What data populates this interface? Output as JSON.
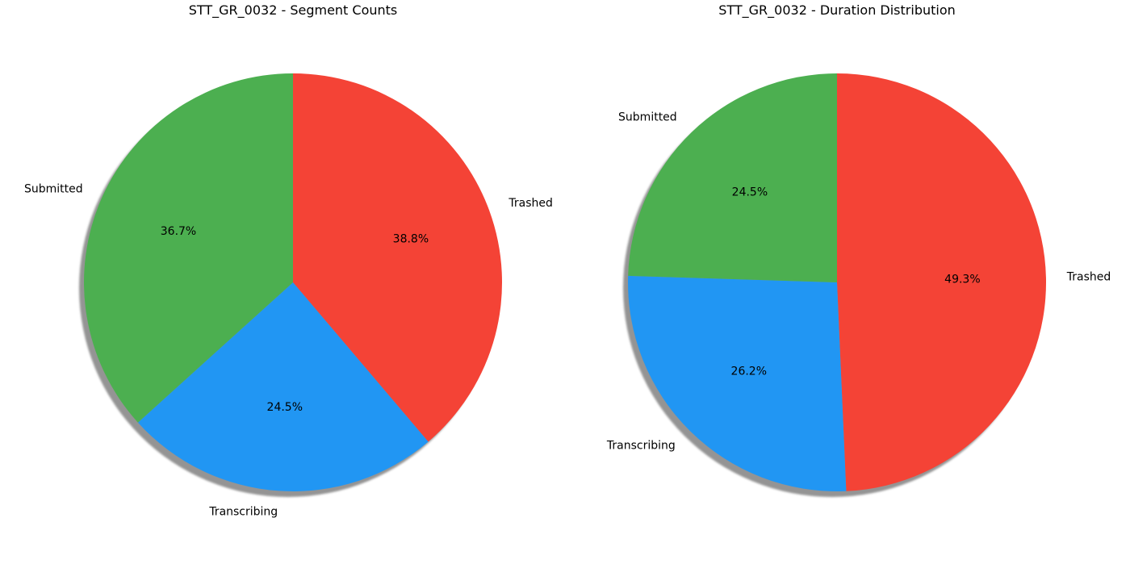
{
  "chart_data": [
    {
      "type": "pie",
      "title": "STT_GR_0032 - Segment Counts",
      "slices": [
        {
          "label": "Trashed",
          "value": 38.8,
          "pct_label": "38.8%"
        },
        {
          "label": "Transcribing",
          "value": 24.5,
          "pct_label": "24.5%"
        },
        {
          "label": "Submitted",
          "value": 36.7,
          "pct_label": "36.7%"
        }
      ],
      "colors": [
        "#F44336",
        "#2196F3",
        "#4CAF50"
      ],
      "start_angle_deg": 90,
      "direction": "clockwise",
      "shadow": true
    },
    {
      "type": "pie",
      "title": "STT_GR_0032 - Duration Distribution",
      "slices": [
        {
          "label": "Trashed",
          "value": 49.3,
          "pct_label": "49.3%"
        },
        {
          "label": "Transcribing",
          "value": 26.2,
          "pct_label": "26.2%"
        },
        {
          "label": "Submitted",
          "value": 24.5,
          "pct_label": "24.5%"
        }
      ],
      "colors": [
        "#F44336",
        "#2196F3",
        "#4CAF50"
      ],
      "start_angle_deg": 90,
      "direction": "clockwise",
      "shadow": true
    }
  ]
}
